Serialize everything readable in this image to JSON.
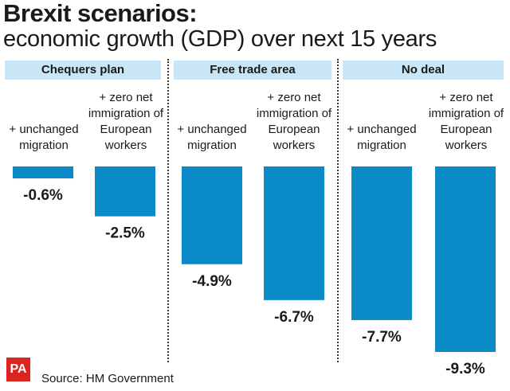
{
  "title": "Brexit scenarios:",
  "subtitle": "economic growth (GDP) over next 15 years",
  "source": "Source: HM Government",
  "logo": "PA",
  "colors": {
    "bar": "#0a8ac6",
    "header": "#c8e6f5",
    "logo": "#d9251d"
  },
  "chart_data": {
    "type": "bar",
    "title": "Brexit scenarios:",
    "subtitle": "economic growth (GDP) over next 15 years",
    "groups": [
      "Chequers plan",
      "Free trade area",
      "No deal"
    ],
    "categories": [
      "+ unchanged migration",
      "+ zero net immigration of European workers"
    ],
    "series": [
      {
        "group": "Chequers plan",
        "values": [
          -0.6,
          -2.5
        ]
      },
      {
        "group": "Free trade area",
        "values": [
          -4.9,
          -6.7
        ]
      },
      {
        "group": "No deal",
        "values": [
          -7.7,
          -9.3
        ]
      }
    ],
    "value_labels": [
      "-0.6%",
      "-2.5%",
      "-4.9%",
      "-6.7%",
      "-7.7%",
      "-9.3%"
    ],
    "ylim": [
      -9.3,
      0
    ],
    "grid": false,
    "legend": "none"
  }
}
